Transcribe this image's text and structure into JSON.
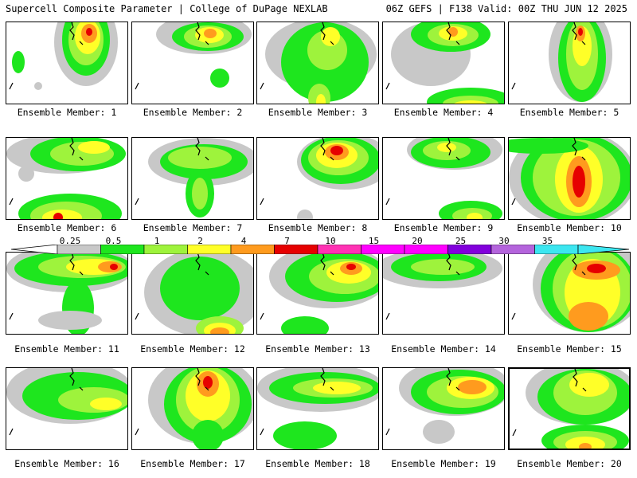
{
  "header": {
    "left": "Supercell Composite Parameter | College of DuPage NEXLAB",
    "right": "06Z GEFS | F138 Valid: 00Z THU JUN 12 2025"
  },
  "colors": {
    "gray": "#c8c8c8",
    "lightgreen": "#9ef33c",
    "green": "#1ee61e",
    "yellow": "#ffff28",
    "orange": "#ff9b1e",
    "red": "#e60000",
    "pink": "#ff32b4",
    "magenta": "#ff00ff",
    "purple": "#8200dc",
    "lavender": "#b464dc",
    "cyan": "#3ce6f0"
  },
  "colorbar": {
    "ticks": [
      "0.25",
      "0.5",
      "1",
      "2",
      "4",
      "7",
      "10",
      "15",
      "20",
      "25",
      "30",
      "35"
    ],
    "colors": [
      "#c8c8c8",
      "#1ee61e",
      "#9ef33c",
      "#ffff28",
      "#ff9b1e",
      "#e60000",
      "#ff32b4",
      "#ff00ff",
      "#ff00ff",
      "#8200dc",
      "#b464dc",
      "#3ce6f0"
    ]
  },
  "members": [
    {
      "label": "Ensemble Member: 1",
      "selected": false
    },
    {
      "label": "Ensemble Member: 2",
      "selected": false
    },
    {
      "label": "Ensemble Member: 3",
      "selected": false
    },
    {
      "label": "Ensemble Member: 4",
      "selected": false
    },
    {
      "label": "Ensemble Member: 5",
      "selected": false
    },
    {
      "label": "Ensemble Member: 6",
      "selected": false
    },
    {
      "label": "Ensemble Member: 7",
      "selected": false
    },
    {
      "label": "Ensemble Member: 8",
      "selected": false
    },
    {
      "label": "Ensemble Member: 9",
      "selected": false
    },
    {
      "label": "Ensemble Member: 10",
      "selected": false
    },
    {
      "label": "Ensemble Member: 11",
      "selected": false
    },
    {
      "label": "Ensemble Member: 12",
      "selected": false
    },
    {
      "label": "Ensemble Member: 13",
      "selected": false
    },
    {
      "label": "Ensemble Member: 14",
      "selected": false
    },
    {
      "label": "Ensemble Member: 15",
      "selected": false
    },
    {
      "label": "Ensemble Member: 16",
      "selected": false
    },
    {
      "label": "Ensemble Member: 17",
      "selected": false
    },
    {
      "label": "Ensemble Member: 18",
      "selected": false
    },
    {
      "label": "Ensemble Member: 19",
      "selected": false
    },
    {
      "label": "Ensemble Member: 20",
      "selected": true
    }
  ]
}
